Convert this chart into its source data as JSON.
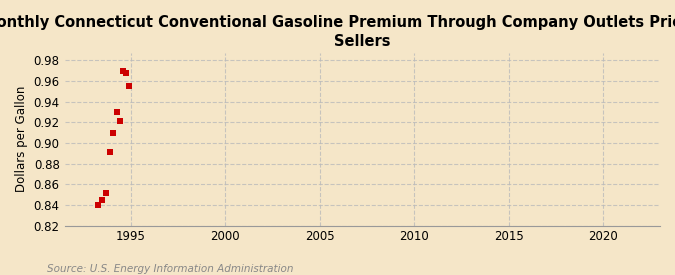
{
  "title": "Monthly Connecticut Conventional Gasoline Premium Through Company Outlets Price by All\nSellers",
  "ylabel": "Dollars per Gallon",
  "source": "Source: U.S. Energy Information Administration",
  "xlim": [
    1991.5,
    2023
  ],
  "ylim": [
    0.82,
    0.9875
  ],
  "xticks": [
    1995,
    2000,
    2005,
    2010,
    2015,
    2020
  ],
  "yticks": [
    0.82,
    0.84,
    0.86,
    0.88,
    0.9,
    0.92,
    0.94,
    0.96,
    0.98
  ],
  "data_x": [
    1993.25,
    1993.5,
    1993.67,
    1993.92,
    1994.08,
    1994.25,
    1994.42,
    1994.58,
    1994.75,
    1994.92
  ],
  "data_y": [
    0.84,
    0.845,
    0.852,
    0.891,
    0.91,
    0.93,
    0.921,
    0.97,
    0.968,
    0.955
  ],
  "marker_color": "#cc0000",
  "marker": "s",
  "marker_size": 4,
  "bg_color": "#f5e6c8",
  "title_fontsize": 10.5,
  "label_fontsize": 8.5,
  "tick_fontsize": 8.5,
  "source_fontsize": 7.5,
  "grid_color": "#bbbbbb",
  "grid_style": "--",
  "grid_alpha": 0.8
}
